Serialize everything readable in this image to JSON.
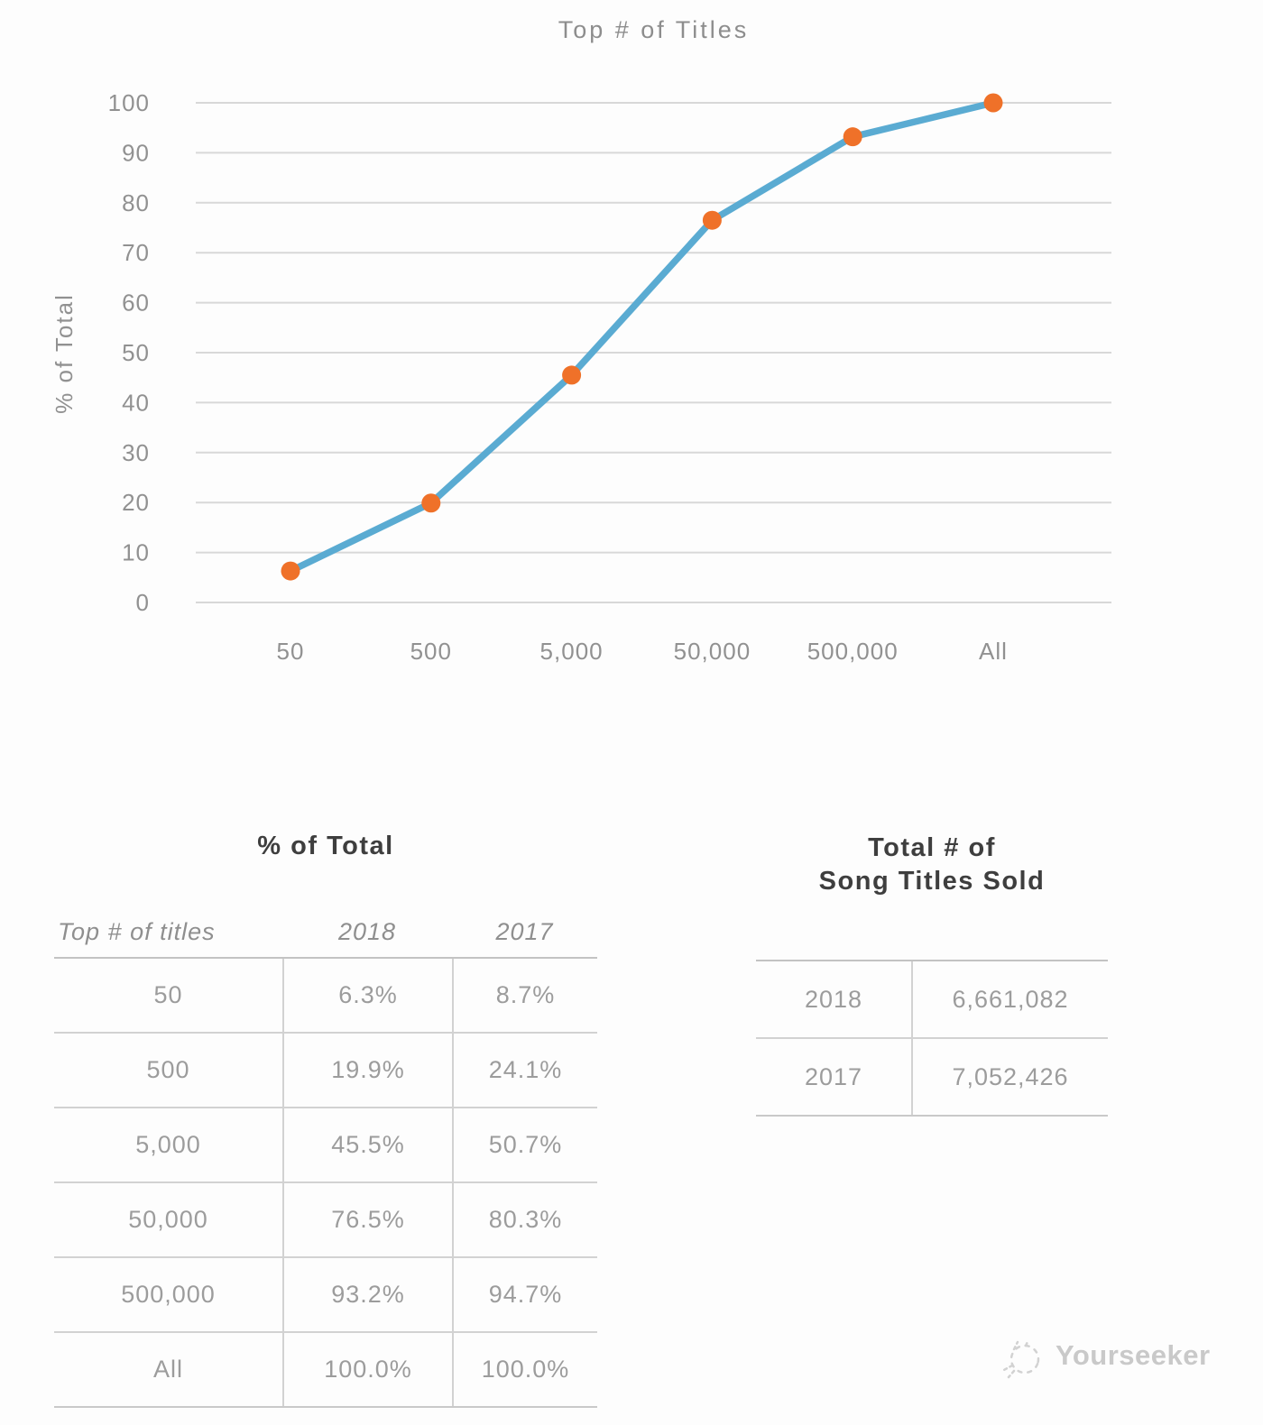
{
  "chart": {
    "title": "Top # of Titles"
  },
  "chart_data": {
    "type": "line",
    "title": "Top # of Titles",
    "categories": [
      "50",
      "500",
      "5,000",
      "50,000",
      "500,000",
      "All"
    ],
    "series": [
      {
        "name": "2018",
        "values": [
          6.3,
          19.9,
          45.5,
          76.5,
          93.2,
          100.0
        ]
      }
    ],
    "xlabel": "",
    "ylabel": "% of Total",
    "ylim": [
      0,
      100
    ],
    "ytick_step": 10,
    "grid": "horizontal",
    "legend": "none",
    "line_color": "#5aabd2",
    "marker_color": "#ef7129",
    "gridline_color": "#d8d8d8",
    "axis_text_color": "#919191"
  },
  "percent_table": {
    "title": "% of Total",
    "columns": [
      "Top # of titles",
      "2018",
      "2017"
    ],
    "rows": [
      [
        "50",
        "6.3%",
        "8.7%"
      ],
      [
        "500",
        "19.9%",
        "24.1%"
      ],
      [
        "5,000",
        "45.5%",
        "50.7%"
      ],
      [
        "50,000",
        "76.5%",
        "80.3%"
      ],
      [
        "500,000",
        "93.2%",
        "94.7%"
      ],
      [
        "All",
        "100.0%",
        "100.0%"
      ]
    ]
  },
  "totals_table": {
    "title_line1": "Total # of",
    "title_line2": "Song Titles Sold",
    "rows": [
      [
        "2018",
        "6,661,082"
      ],
      [
        "2017",
        "7,052,426"
      ]
    ]
  },
  "watermark": {
    "label": "Yourseeker",
    "icon": "scribble-doodle-icon",
    "color": "#c9c9c9"
  }
}
